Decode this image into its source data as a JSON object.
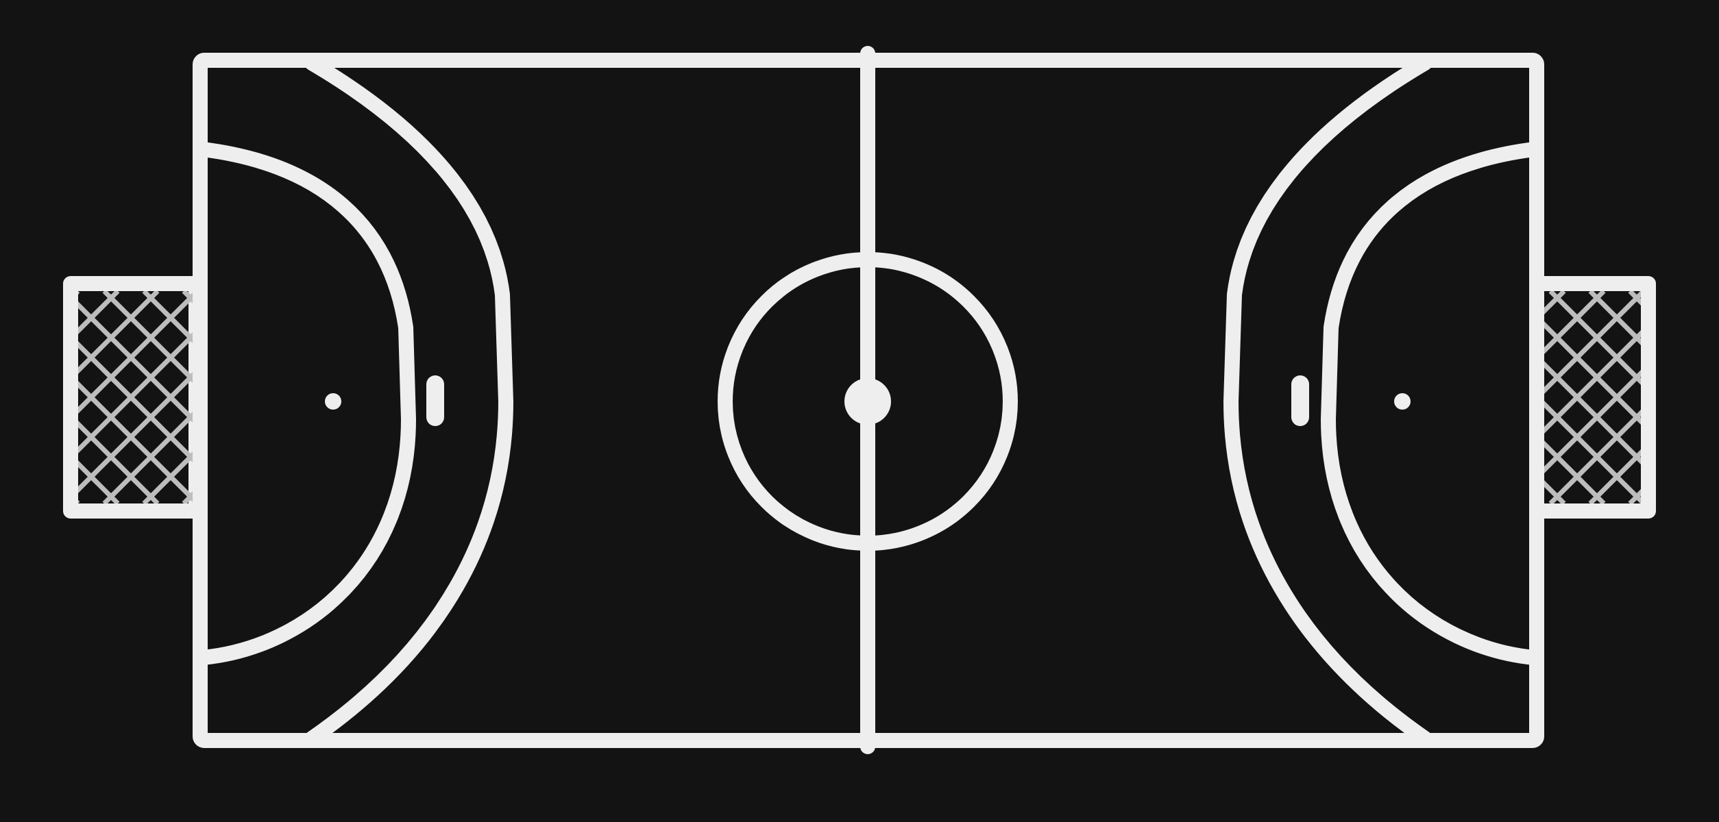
{
  "court": {
    "sport": "handball",
    "orientation": "horizontal",
    "goals": 2,
    "markings": [
      "sidelines",
      "goal-lines",
      "center-line",
      "center-circle",
      "center-spot",
      "goal-areas",
      "free-throw-lines",
      "seven-meter-marks",
      "goalkeeper-marks",
      "goal-nets"
    ]
  },
  "colors": {
    "background": "#131313",
    "line": "#eeeeee",
    "net": "#bdbdbd"
  }
}
